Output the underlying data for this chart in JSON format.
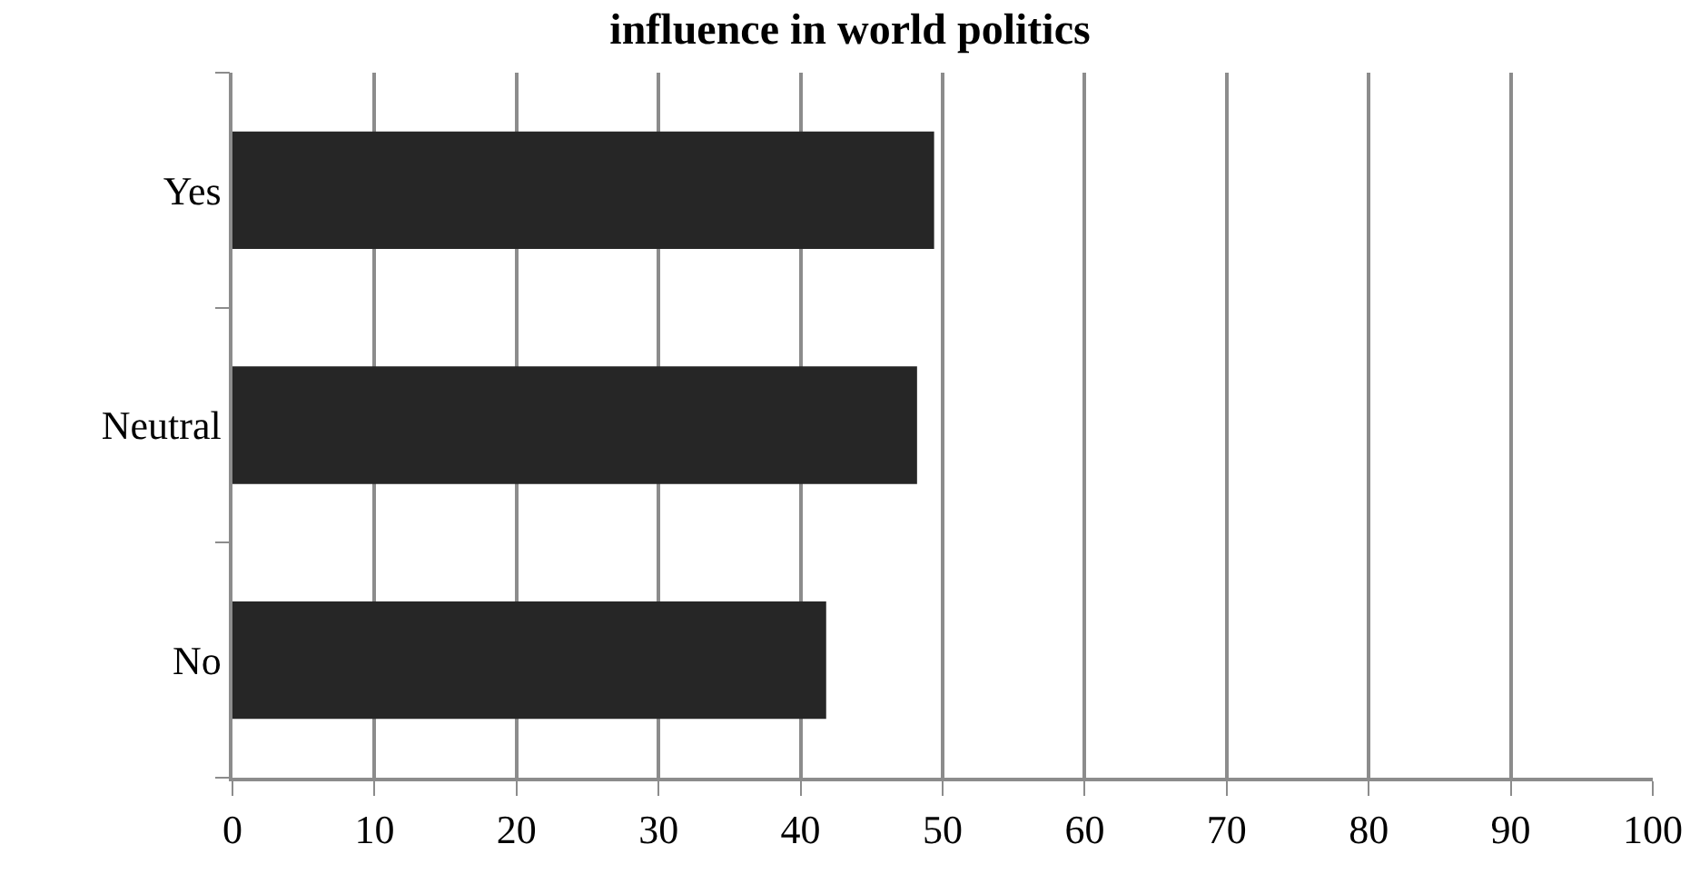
{
  "chart_data": {
    "type": "bar",
    "orientation": "horizontal",
    "title": "influence in world politics",
    "categories": [
      "Yes",
      "Neutral",
      "No"
    ],
    "values": [
      49.4,
      48.2,
      41.8
    ],
    "color": "#262626",
    "xlim": [
      0,
      100
    ],
    "xticks": [
      0,
      10,
      20,
      30,
      40,
      50,
      60,
      70,
      80,
      90,
      100
    ],
    "grid": "x"
  }
}
